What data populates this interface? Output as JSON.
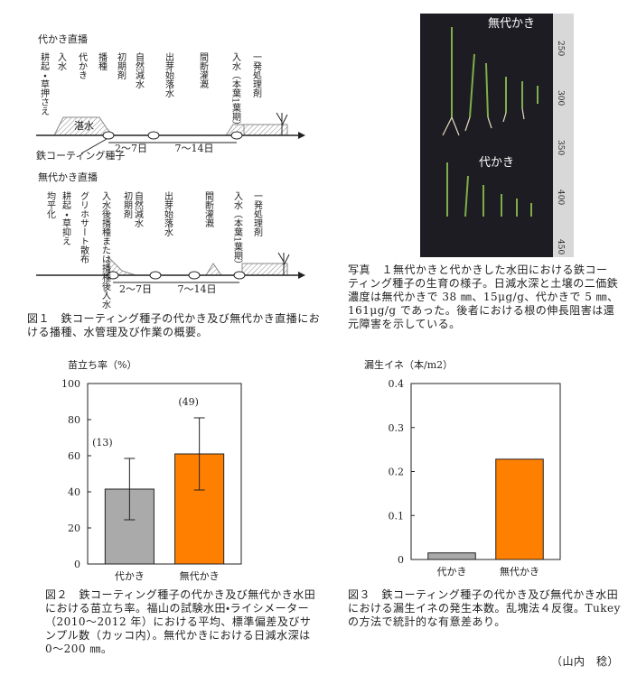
{
  "figure1": {
    "diagram1": {
      "title": "代かき直播",
      "steps": [
        "耕起・草押さえ",
        "入水",
        "代かき",
        "播種",
        "初期剤",
        "自然減水",
        "出芽始落水",
        "間断灌漑",
        "入水（本葉1葉期）",
        "一発処理剤"
      ],
      "water_label": "湛水",
      "seed_label": "鉄コーティング種子",
      "interval1": "2～7日",
      "interval2": "7～14日"
    },
    "diagram2": {
      "title": "無代かき直播",
      "steps": [
        "均平化",
        "耕起・草抑え",
        "グリホサート散布",
        "入水後播種または播種後入水",
        "初期剤",
        "自然減水",
        "出芽始落水",
        "間断灌漑",
        "入水（本葉1葉期）",
        "一発処理剤"
      ],
      "interval1": "2～7日",
      "interval2": "7～14日"
    },
    "caption": "図１　鉄コーティング種子の代かき及び無代かき直播における播種、水管理及び作業の概要。"
  },
  "photo": {
    "labels": [
      "無代かき",
      "代かき"
    ],
    "ruler_ticks": [
      250,
      300,
      350,
      400,
      450
    ],
    "caption": "写真　１無代かきと代かきした水田における鉄コーティング種子の生育の様子。日減水深と土壌の二価鉄濃度は無代かきで 38 ㎜、15μg/g、代かきで 5 ㎜、161μg/g であった。後者における根の伸長阻害は還元障害を示している。"
  },
  "chart_data": [
    {
      "type": "bar",
      "y_label": "苗立ち率（%）",
      "categories": [
        "代かき",
        "無代かき"
      ],
      "values": [
        41.5,
        61
      ],
      "errors": [
        17,
        20
      ],
      "sample_labels": [
        "(13)",
        "(49)"
      ],
      "colors": [
        "#aaaaaa",
        "#ff8000"
      ],
      "ylim": [
        0,
        100
      ],
      "yticks": [
        0,
        20,
        40,
        60,
        80,
        100
      ],
      "caption": "図２　鉄コーティング種子の代かき及び無代かき水田における苗立ち率。福山の試験水田・ライシメーター（2010～2012 年）における平均、標準偏差及びサンプル数（カッコ内）。無代かきにおける日減水深は0～200 ㎜。"
    },
    {
      "type": "bar",
      "y_label": "漏生イネ（本/m2）",
      "categories": [
        "代かき",
        "無代かき"
      ],
      "values": [
        0.015,
        0.228
      ],
      "colors": [
        "#aaaaaa",
        "#ff8000"
      ],
      "ylim": [
        0,
        0.4
      ],
      "yticks": [
        0,
        0.1,
        0.2,
        0.3,
        0.4
      ],
      "caption": "図３　鉄コーティング種子の代かき及び無代かき水田における漏生イネの発生本数。乱塊法４反復。Tukey の方法で統計的な有意差あり。"
    }
  ],
  "author": "（山内　稔）"
}
